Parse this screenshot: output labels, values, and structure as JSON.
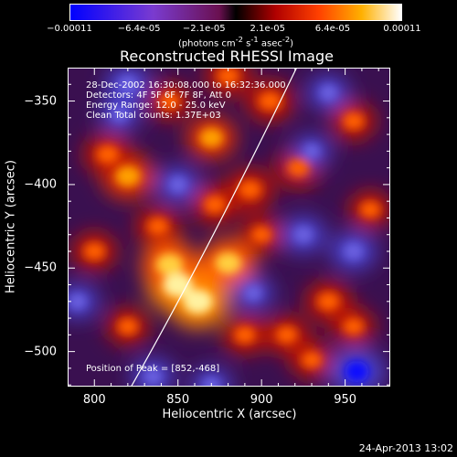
{
  "chart_data": {
    "type": "heatmap",
    "title": "Reconstructed RHESSI Image",
    "xlabel": "Heliocentric X (arcsec)",
    "ylabel": "Heliocentric Y (arcsec)",
    "xlim": [
      784,
      977
    ],
    "ylim": [
      -521,
      -330
    ],
    "xticks": [
      "800",
      "850",
      "900",
      "950"
    ],
    "yticks": [
      "-350",
      "-400",
      "-450",
      "-500"
    ],
    "colorbar": {
      "ticks": [
        "-0.00011",
        "-6.4e-05",
        "-2.1e-05",
        "2.1e-05",
        "6.4e-05",
        "0.00011"
      ],
      "units_prefix": "(photons cm",
      "units_sup1": "-2",
      "units_mid": " s",
      "units_sup2": "-1",
      "units_mid2": " asec",
      "units_sup3": "-2",
      "units_suffix": ")",
      "min": -0.00011,
      "max": 0.00011
    },
    "info_lines": [
      "28-Dec-2002 16:30:08.000 to 16:32:36.000",
      "Detectors: 4F 5F 6F 7F 8F, Att 0",
      "Energy Range: 12.0 - 25.0 keV",
      "Clean     Total counts: 1.37E+03"
    ],
    "peak_label": "Position of Peak = [852,-468]",
    "peak": [
      852,
      -468
    ],
    "bright_regions": [
      {
        "x": 850,
        "y": -460,
        "intensity": 1.0
      },
      {
        "x": 862,
        "y": -470,
        "intensity": 0.95
      },
      {
        "x": 845,
        "y": -448,
        "intensity": 0.8
      },
      {
        "x": 880,
        "y": -447,
        "intensity": 0.75
      },
      {
        "x": 820,
        "y": -395,
        "intensity": 0.7
      },
      {
        "x": 808,
        "y": -382,
        "intensity": 0.55
      },
      {
        "x": 870,
        "y": -372,
        "intensity": 0.6
      },
      {
        "x": 905,
        "y": -350,
        "intensity": 0.55
      },
      {
        "x": 880,
        "y": -335,
        "intensity": 0.5
      },
      {
        "x": 893,
        "y": -403,
        "intensity": 0.55
      },
      {
        "x": 872,
        "y": -412,
        "intensity": 0.5
      },
      {
        "x": 922,
        "y": -390,
        "intensity": 0.5
      },
      {
        "x": 955,
        "y": -362,
        "intensity": 0.45
      },
      {
        "x": 940,
        "y": -470,
        "intensity": 0.5
      },
      {
        "x": 915,
        "y": -490,
        "intensity": 0.45
      },
      {
        "x": 930,
        "y": -505,
        "intensity": 0.4
      },
      {
        "x": 955,
        "y": -485,
        "intensity": 0.4
      },
      {
        "x": 890,
        "y": -490,
        "intensity": 0.45
      },
      {
        "x": 800,
        "y": -440,
        "intensity": 0.45
      },
      {
        "x": 820,
        "y": -485,
        "intensity": 0.4
      },
      {
        "x": 965,
        "y": -415,
        "intensity": 0.4
      },
      {
        "x": 845,
        "y": -350,
        "intensity": 0.4
      },
      {
        "x": 838,
        "y": -425,
        "intensity": 0.45
      },
      {
        "x": 900,
        "y": -430,
        "intensity": 0.4
      }
    ],
    "dark_regions": [
      {
        "x": 957,
        "y": -512,
        "intensity": 1.0
      },
      {
        "x": 820,
        "y": -340,
        "intensity": 0.6
      },
      {
        "x": 955,
        "y": -440,
        "intensity": 0.6
      },
      {
        "x": 925,
        "y": -430,
        "intensity": 0.55
      },
      {
        "x": 850,
        "y": -400,
        "intensity": 0.5
      },
      {
        "x": 835,
        "y": -515,
        "intensity": 0.5
      },
      {
        "x": 870,
        "y": -520,
        "intensity": 0.4
      },
      {
        "x": 790,
        "y": -470,
        "intensity": 0.45
      },
      {
        "x": 940,
        "y": -345,
        "intensity": 0.45
      },
      {
        "x": 895,
        "y": -465,
        "intensity": 0.4
      },
      {
        "x": 815,
        "y": -358,
        "intensity": 0.4
      },
      {
        "x": 930,
        "y": -380,
        "intensity": 0.35
      }
    ],
    "limb": "solar limb curve"
  },
  "footer": {
    "date": "24-Apr-2013 13:02"
  }
}
